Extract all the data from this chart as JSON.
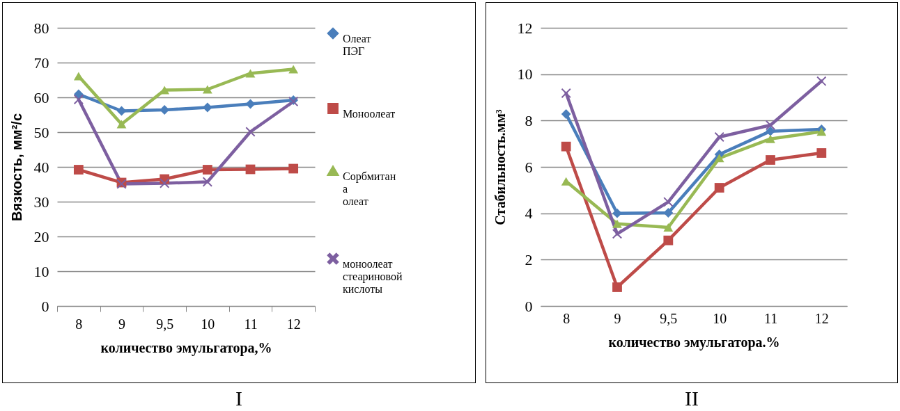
{
  "chart_data": [
    {
      "type": "line",
      "xlabel": "количество эмульгатора,%",
      "ylabel": "Вязкость, мм²/с",
      "categories": [
        "8",
        "9",
        "9,5",
        "10",
        "11",
        "12"
      ],
      "ylim": [
        0,
        80
      ],
      "yticks": [
        0,
        10,
        20,
        30,
        40,
        50,
        60,
        70,
        80
      ],
      "grid": "y",
      "legend": "right",
      "annotations": [
        "I"
      ],
      "series": [
        {
          "name": "Олеат ПЭГ",
          "color": "#4a7ebb",
          "marker": "diamond",
          "values": [
            60.9,
            56.1,
            56.4,
            57.1,
            58.1,
            59.2
          ]
        },
        {
          "name": "Моноолеат",
          "color": "#be4b48",
          "marker": "square",
          "values": [
            39.2,
            35.5,
            36.5,
            39.2,
            39.3,
            39.5
          ]
        },
        {
          "name": "Сорбмитан а олеат",
          "color": "#98b954",
          "marker": "triangle",
          "values": [
            66.1,
            52.3,
            62.1,
            62.3,
            66.9,
            68.1
          ]
        },
        {
          "name": "моноолеат стеариновой кислоты",
          "color": "#7d5fa0",
          "marker": "cross",
          "values": [
            59.4,
            35.1,
            35.3,
            35.7,
            50.1,
            58.8
          ]
        }
      ]
    },
    {
      "type": "line",
      "xlabel": "количество эмульгатора.%",
      "ylabel": "Стабильность.мм³",
      "categories": [
        "8",
        "9",
        "9,5",
        "10",
        "11",
        "12"
      ],
      "ylim": [
        0,
        12
      ],
      "yticks": [
        0,
        2,
        4,
        6,
        8,
        10,
        12
      ],
      "grid": "y",
      "annotations": [
        "II"
      ],
      "series": [
        {
          "color": "#4a7ebb",
          "marker": "diamond",
          "values": [
            8.28,
            4.0,
            4.02,
            6.54,
            7.54,
            7.62
          ]
        },
        {
          "color": "#be4b48",
          "marker": "square",
          "values": [
            6.88,
            0.81,
            2.83,
            5.1,
            6.3,
            6.6
          ]
        },
        {
          "color": "#98b954",
          "marker": "triangle",
          "values": [
            5.38,
            3.55,
            3.39,
            6.38,
            7.21,
            7.52
          ]
        },
        {
          "color": "#7d5fa0",
          "marker": "cross",
          "values": [
            9.18,
            3.11,
            4.49,
            7.29,
            7.8,
            9.7
          ]
        }
      ]
    }
  ]
}
